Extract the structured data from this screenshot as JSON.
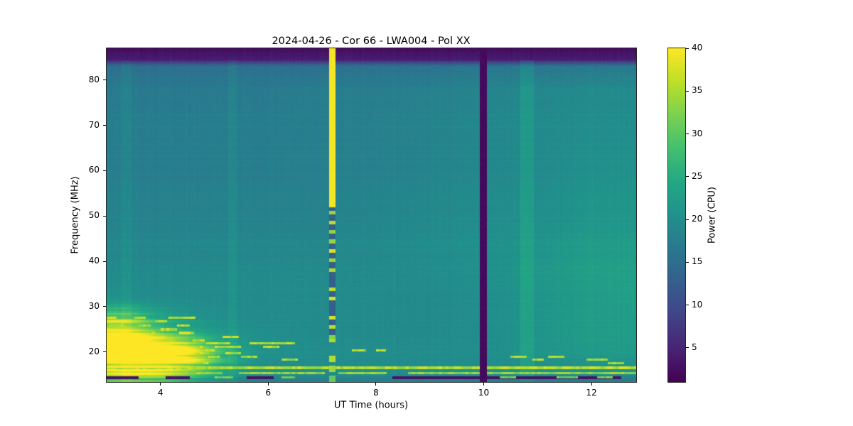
{
  "figure": {
    "background": "#ffffff"
  },
  "chart_data": {
    "type": "heatmap",
    "title": "2024-04-26 - Cor 66 - LWA004 - Pol XX",
    "xlabel": "UT Time (hours)",
    "ylabel": "Frequency (MHz)",
    "colorbar_label": "Power (CPU)",
    "x_range": [
      3.0,
      12.83
    ],
    "y_range": [
      13.4,
      87.0
    ],
    "color_range": [
      1,
      40
    ],
    "x_ticks": [
      4,
      6,
      8,
      10,
      12
    ],
    "y_ticks": [
      20,
      30,
      40,
      50,
      60,
      70,
      80
    ],
    "colorbar_ticks": [
      5,
      10,
      15,
      20,
      25,
      30,
      35,
      40
    ],
    "grid": false,
    "colormap": {
      "name": "viridis",
      "stops": [
        [
          0.0,
          "#440154"
        ],
        [
          0.1,
          "#482475"
        ],
        [
          0.2,
          "#414487"
        ],
        [
          0.3,
          "#355f8d"
        ],
        [
          0.4,
          "#2a788e"
        ],
        [
          0.5,
          "#21918c"
        ],
        [
          0.6,
          "#22a884"
        ],
        [
          0.7,
          "#44bf70"
        ],
        [
          0.8,
          "#7ad151"
        ],
        [
          0.9,
          "#bddf26"
        ],
        [
          1.0,
          "#fde725"
        ]
      ]
    },
    "background_grid": {
      "t_nodes": [
        3.0,
        4.0,
        5.0,
        6.0,
        7.0,
        8.0,
        9.0,
        10.0,
        11.0,
        12.0,
        12.83
      ],
      "f_nodes": [
        13.4,
        15,
        17,
        20,
        24,
        28,
        33,
        38,
        43,
        48,
        55,
        62,
        70,
        78,
        83,
        84.5,
        87
      ],
      "power": [
        [
          17,
          17,
          17,
          17,
          17,
          17,
          17,
          16.5,
          16.5,
          16.5,
          16.5
        ],
        [
          20,
          20,
          19.5,
          19.5,
          19.5,
          19.5,
          19.5,
          19.5,
          19.5,
          19.5,
          19.5
        ],
        [
          21,
          21,
          20.5,
          20,
          20,
          20,
          20,
          20,
          20.5,
          21,
          21
        ],
        [
          27,
          25,
          21.5,
          20.5,
          20,
          20,
          20,
          20,
          21,
          22,
          22
        ],
        [
          26,
          23,
          21,
          20,
          19.5,
          19.5,
          19.5,
          20,
          21,
          22.5,
          22.5
        ],
        [
          22,
          21,
          20,
          19.5,
          19.5,
          19.5,
          19.5,
          20,
          21,
          22.5,
          22.5
        ],
        [
          20,
          19.5,
          19.5,
          19.5,
          19.5,
          19.5,
          19.5,
          20,
          21,
          22.5,
          23
        ],
        [
          19.5,
          19.5,
          19.5,
          19.5,
          19.5,
          19.5,
          20,
          20.5,
          21.5,
          23,
          23
        ],
        [
          19,
          19,
          19,
          19,
          19,
          19.5,
          20,
          20.5,
          21,
          22.5,
          22.5
        ],
        [
          18.5,
          18.5,
          18.5,
          18.5,
          18.5,
          19,
          19.5,
          20,
          20.5,
          21.5,
          21.5
        ],
        [
          18,
          18,
          18,
          18,
          18,
          18.5,
          19,
          19.5,
          20,
          21,
          21
        ],
        [
          17.5,
          17.5,
          17.5,
          17.5,
          18,
          18,
          18.5,
          19,
          19.5,
          20.5,
          20.5
        ],
        [
          17.5,
          17.5,
          17.5,
          17.5,
          17.5,
          18,
          18.5,
          19,
          19.5,
          20,
          20
        ],
        [
          17,
          17,
          17,
          17,
          17.5,
          17.5,
          18,
          18.5,
          19,
          19.5,
          19.5
        ],
        [
          15.5,
          15.5,
          15.5,
          15.5,
          15.5,
          16,
          16,
          16.5,
          16.5,
          17,
          17
        ],
        [
          4,
          4,
          4,
          4,
          4,
          4,
          4,
          4,
          4,
          4,
          4
        ],
        [
          2.5,
          2.5,
          2.5,
          2.5,
          2.5,
          2.5,
          2.5,
          2.5,
          2.5,
          2.5,
          2.5
        ]
      ]
    },
    "features": [
      {
        "type": "vband",
        "name": "faint-bright-column-1",
        "t": [
          3.28,
          3.46
        ],
        "f": [
          13.4,
          84.3
        ],
        "mode": "add",
        "power": 1.2
      },
      {
        "type": "vband",
        "name": "faint-bright-column-2",
        "t": [
          5.25,
          5.43
        ],
        "f": [
          13.4,
          84.3
        ],
        "mode": "add",
        "power": 1.2
      },
      {
        "type": "vband",
        "name": "bright-column",
        "t": [
          10.68,
          10.93
        ],
        "f": [
          13.4,
          84.3
        ],
        "mode": "add",
        "power": 2.5
      },
      {
        "type": "blob",
        "name": "low-band-emission-core",
        "t": 3.25,
        "f": 19.0,
        "st": 0.8,
        "sf": 4.2,
        "amp": 21
      },
      {
        "type": "blob",
        "name": "low-band-emission-2",
        "t": 4.3,
        "f": 18.5,
        "st": 0.6,
        "sf": 3.2,
        "amp": 12
      },
      {
        "type": "blob",
        "name": "low-band-emission-3",
        "t": 3.2,
        "f": 25.5,
        "st": 0.45,
        "sf": 2.6,
        "amp": 10
      },
      {
        "type": "vband",
        "name": "broadband-burst-upper",
        "t": [
          7.13,
          7.25
        ],
        "f": [
          52.0,
          87.0
        ],
        "mode": "set",
        "power": 39.5
      },
      {
        "type": "vband",
        "name": "broadband-burst-mid-base",
        "t": [
          7.13,
          7.25
        ],
        "f": [
          23.0,
          52.0
        ],
        "mode": "set",
        "power": 13
      },
      {
        "type": "dashedv",
        "name": "broadband-burst-mid-dashes",
        "t": [
          7.13,
          7.25
        ],
        "f": [
          23.0,
          52.0
        ],
        "power": 38,
        "dash_on": 0.8,
        "dash_off": 1.3
      },
      {
        "type": "dashedv",
        "name": "broadband-burst-low",
        "t": [
          7.13,
          7.25
        ],
        "f": [
          13.4,
          23.0
        ],
        "power": 36,
        "dash_on": 1.4,
        "dash_off": 0.8
      },
      {
        "type": "vband",
        "name": "dropout-column",
        "t": [
          9.93,
          10.06
        ],
        "f": [
          13.4,
          87.0
        ],
        "mode": "set",
        "power": 2
      },
      {
        "type": "hsegs",
        "name": "rfi-line-16p5",
        "f": 16.5,
        "th": 0.6,
        "power": 38,
        "segments": [
          [
            3.0,
            9.93
          ],
          [
            10.06,
            12.83
          ]
        ]
      },
      {
        "type": "hsegs",
        "name": "rfi-line-15p4",
        "f": 15.4,
        "th": 0.5,
        "power": 36,
        "segments": [
          [
            3.0,
            5.15
          ],
          [
            5.45,
            7.05
          ],
          [
            7.3,
            8.2
          ],
          [
            8.6,
            9.93
          ],
          [
            10.06,
            12.83
          ]
        ]
      },
      {
        "type": "hsegs",
        "name": "dark-bottom-band",
        "f": 14.3,
        "th": 0.55,
        "power": 3,
        "mode": "set",
        "segments": [
          [
            3.0,
            3.6
          ],
          [
            4.1,
            4.55
          ],
          [
            5.6,
            6.1
          ],
          [
            8.3,
            9.93
          ],
          [
            10.06,
            12.55
          ]
        ]
      },
      {
        "type": "hsegs",
        "name": "bottom-dashes",
        "f": 14.35,
        "th": 0.45,
        "power": 34,
        "segments": [
          [
            5.0,
            5.35
          ],
          [
            6.25,
            6.5
          ],
          [
            10.3,
            10.6
          ],
          [
            11.35,
            11.75
          ],
          [
            12.1,
            12.4
          ]
        ]
      },
      {
        "type": "hsegs",
        "name": "streak-27p6",
        "f": 27.6,
        "th": 0.5,
        "power": 38,
        "segments": [
          [
            3.0,
            3.18
          ],
          [
            3.5,
            3.72
          ],
          [
            4.15,
            4.65
          ]
        ]
      },
      {
        "type": "hsegs",
        "name": "streak-26p8",
        "f": 26.8,
        "th": 0.5,
        "power": 38,
        "segments": [
          [
            3.0,
            3.42
          ],
          [
            3.9,
            4.12
          ]
        ]
      },
      {
        "type": "hsegs",
        "name": "streak-25p9",
        "f": 25.9,
        "th": 0.5,
        "power": 38,
        "segments": [
          [
            3.05,
            3.3
          ],
          [
            3.6,
            3.82
          ],
          [
            4.3,
            4.55
          ]
        ]
      },
      {
        "type": "hsegs",
        "name": "streak-25p0",
        "f": 25.0,
        "th": 0.5,
        "power": 38,
        "segments": [
          [
            3.0,
            3.5
          ],
          [
            4.0,
            4.3
          ]
        ]
      },
      {
        "type": "hsegs",
        "name": "streak-24p2",
        "f": 24.2,
        "th": 0.5,
        "power": 38,
        "segments": [
          [
            3.0,
            3.9
          ],
          [
            4.35,
            4.62
          ]
        ]
      },
      {
        "type": "hsegs",
        "name": "streak-23p4",
        "f": 23.4,
        "th": 0.5,
        "power": 38,
        "segments": [
          [
            3.0,
            4.1
          ],
          [
            5.15,
            5.45
          ]
        ]
      },
      {
        "type": "hsegs",
        "name": "streak-22p6",
        "f": 22.6,
        "th": 0.5,
        "power": 38,
        "segments": [
          [
            3.0,
            4.3
          ],
          [
            4.6,
            4.82
          ]
        ]
      },
      {
        "type": "hsegs",
        "name": "streak-21p9",
        "f": 21.9,
        "th": 0.55,
        "power": 38,
        "segments": [
          [
            3.0,
            4.55
          ],
          [
            4.85,
            5.3
          ],
          [
            5.65,
            6.5
          ]
        ]
      },
      {
        "type": "hsegs",
        "name": "streak-21p1",
        "f": 21.1,
        "th": 0.5,
        "power": 38,
        "segments": [
          [
            3.0,
            4.8
          ],
          [
            5.0,
            5.5
          ],
          [
            5.9,
            6.2
          ]
        ]
      },
      {
        "type": "hsegs",
        "name": "streak-20p4",
        "f": 20.4,
        "th": 0.5,
        "power": 38,
        "segments": [
          [
            3.0,
            4.45
          ],
          [
            4.7,
            5.0
          ],
          [
            7.55,
            7.82
          ],
          [
            8.0,
            8.18
          ]
        ]
      },
      {
        "type": "hsegs",
        "name": "streak-19p7",
        "f": 19.7,
        "th": 0.5,
        "power": 38,
        "segments": [
          [
            3.0,
            4.9
          ],
          [
            5.2,
            5.5
          ]
        ]
      },
      {
        "type": "hsegs",
        "name": "streak-19p0",
        "f": 19.0,
        "th": 0.5,
        "power": 37,
        "segments": [
          [
            3.0,
            5.1
          ],
          [
            5.5,
            5.8
          ],
          [
            10.5,
            10.8
          ],
          [
            11.2,
            11.5
          ]
        ]
      },
      {
        "type": "hsegs",
        "name": "streak-18p3",
        "f": 18.3,
        "th": 0.5,
        "power": 37,
        "segments": [
          [
            3.0,
            4.5
          ],
          [
            6.25,
            6.55
          ],
          [
            10.9,
            11.12
          ],
          [
            11.9,
            12.3
          ]
        ]
      },
      {
        "type": "hsegs",
        "name": "streak-17p6",
        "f": 17.6,
        "th": 0.5,
        "power": 37,
        "segments": [
          [
            3.0,
            4.2
          ],
          [
            4.5,
            4.9
          ],
          [
            12.3,
            12.6
          ]
        ]
      }
    ]
  }
}
